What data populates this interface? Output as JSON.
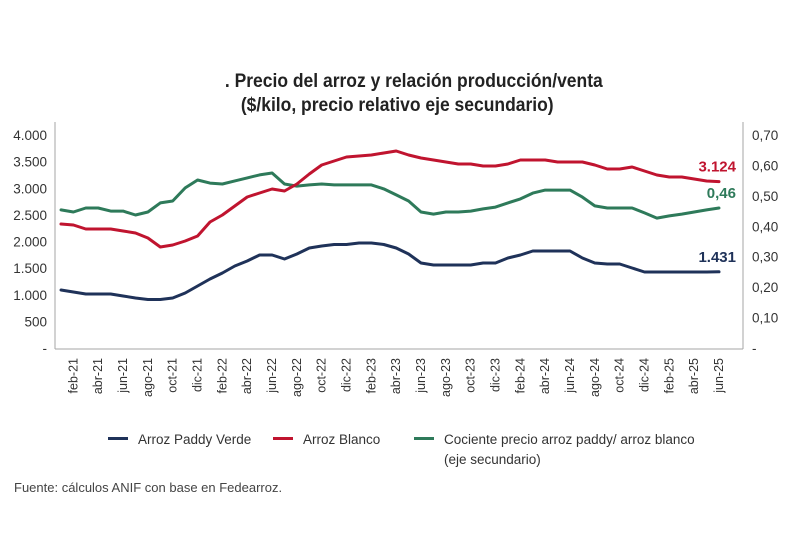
{
  "chart_data": {
    "type": "line",
    "title": ". Precio del arroz y relación producción/venta",
    "subtitle": "($/kilo, precio relativo eje secundario)",
    "xlabel": "",
    "ylabel": "",
    "y_left": {
      "range": [
        0,
        4000
      ],
      "ticks": [
        "-",
        "500",
        "1.000",
        "1.500",
        "2.000",
        "2.500",
        "3.000",
        "3.500",
        "4.000"
      ]
    },
    "y_right": {
      "range": [
        0,
        0.7
      ],
      "ticks": [
        "-",
        "0,10",
        "0,20",
        "0,30",
        "0,40",
        "0,50",
        "0,60",
        "0,70"
      ]
    },
    "x_tick_labels": [
      "feb-21",
      "abr-21",
      "jun-21",
      "ago-21",
      "oct-21",
      "dic-21",
      "feb-22",
      "abr-22",
      "jun-22",
      "ago-22",
      "oct-22",
      "dic-22",
      "feb-23",
      "abr-23",
      "jun-23",
      "ago-23",
      "oct-23",
      "dic-23",
      "feb-24",
      "abr-24",
      "jun-24",
      "ago-24",
      "oct-24",
      "dic-24",
      "feb-25",
      "abr-25",
      "jun-25"
    ],
    "x": [
      "ene-21",
      "feb-21",
      "mar-21",
      "abr-21",
      "may-21",
      "jun-21",
      "jul-21",
      "ago-21",
      "sep-21",
      "oct-21",
      "nov-21",
      "dic-21",
      "ene-22",
      "feb-22",
      "mar-22",
      "abr-22",
      "may-22",
      "jun-22",
      "jul-22",
      "ago-22",
      "sep-22",
      "oct-22",
      "nov-22",
      "dic-22",
      "ene-23",
      "feb-23",
      "mar-23",
      "abr-23",
      "may-23",
      "jun-23",
      "jul-23",
      "ago-23",
      "sep-23",
      "oct-23",
      "nov-23",
      "dic-23",
      "ene-24",
      "feb-24",
      "mar-24",
      "abr-24",
      "may-24",
      "jun-24",
      "jul-24",
      "ago-24",
      "sep-24",
      "oct-24",
      "nov-24",
      "dic-24",
      "ene-25",
      "feb-25",
      "mar-25",
      "abr-25",
      "may-25",
      "jun-25"
    ],
    "series": [
      {
        "name": "Arroz Paddy Verde",
        "axis": "left",
        "color": "#1f3259",
        "end_label": "1.431",
        "values": [
          1089,
          1052,
          1014,
          1014,
          1014,
          976,
          939,
          911,
          911,
          939,
          1033,
          1164,
          1296,
          1408,
          1540,
          1634,
          1746,
          1746,
          1671,
          1765,
          1878,
          1915,
          1944,
          1944,
          1972,
          1972,
          1944,
          1878,
          1765,
          1596,
          1559,
          1559,
          1559,
          1559,
          1596,
          1596,
          1690,
          1746,
          1822,
          1822,
          1822,
          1822,
          1690,
          1596,
          1577,
          1577,
          1502,
          1427,
          1427,
          1427,
          1427,
          1427,
          1427,
          1431
        ]
      },
      {
        "name": "Arroz Blanco",
        "axis": "left",
        "color": "#c0142f",
        "end_label": "3.124",
        "values": [
          2329,
          2310,
          2235,
          2235,
          2235,
          2197,
          2160,
          2066,
          1897,
          1934,
          2009,
          2103,
          2366,
          2498,
          2667,
          2836,
          2911,
          2986,
          2948,
          3080,
          3268,
          3437,
          3512,
          3587,
          3606,
          3624,
          3662,
          3700,
          3624,
          3568,
          3531,
          3493,
          3455,
          3455,
          3418,
          3418,
          3455,
          3531,
          3531,
          3531,
          3493,
          3493,
          3493,
          3437,
          3361,
          3361,
          3399,
          3324,
          3249,
          3211,
          3211,
          3174,
          3136,
          3124
        ]
      },
      {
        "name": "Cociente precio arroz paddy/ arroz blanco (eje secundario)",
        "axis": "right",
        "color": "#2e7a5a",
        "end_label": "0,46",
        "values": [
          0.454,
          0.447,
          0.46,
          0.46,
          0.45,
          0.45,
          0.437,
          0.447,
          0.477,
          0.483,
          0.526,
          0.552,
          0.542,
          0.539,
          0.549,
          0.559,
          0.569,
          0.575,
          0.539,
          0.532,
          0.536,
          0.539,
          0.536,
          0.536,
          0.536,
          0.536,
          0.523,
          0.503,
          0.483,
          0.447,
          0.44,
          0.447,
          0.447,
          0.45,
          0.457,
          0.463,
          0.477,
          0.49,
          0.509,
          0.519,
          0.519,
          0.519,
          0.496,
          0.467,
          0.46,
          0.46,
          0.46,
          0.444,
          0.427,
          0.434,
          0.44,
          0.447,
          0.454,
          0.46
        ]
      }
    ],
    "grid": false,
    "legend": "bottom"
  },
  "legend": {
    "items": [
      {
        "label": "Arroz Paddy Verde",
        "color": "#1f3259"
      },
      {
        "label": "Arroz Blanco",
        "color": "#c0142f"
      },
      {
        "label": "Cociente precio arroz paddy/ arroz blanco",
        "label2": "(eje secundario)",
        "color": "#2e7a5a"
      }
    ]
  },
  "source": "Fuente: cálculos ANIF con base en Fedearroz."
}
